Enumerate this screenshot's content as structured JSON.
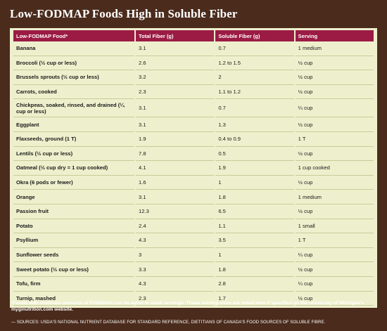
{
  "title": "Low-FODMAP Foods High in Soluble Fiber",
  "table": {
    "headers": [
      "Low-FODMAP Food*",
      "Total Fiber (g)",
      "Soluble Fiber (g)",
      "Serving"
    ],
    "rows": [
      [
        "Banana",
        "3.1",
        "0.7",
        "1 medium"
      ],
      [
        "Broccoli (½ cup or less)",
        "2.6",
        "1.2 to 1.5",
        "½ cup"
      ],
      [
        "Brussels sprouts (½ cup or less)",
        "3.2",
        "2",
        "½ cup"
      ],
      [
        "Carrots, cooked",
        "2.3",
        "1.1 to 1.2",
        "½ cup"
      ],
      [
        "Chickpeas, soaked, rinsed, and drained (¼ cup or less)",
        "3.1",
        "0.7",
        "¼ cup"
      ],
      [
        "Eggplant",
        "3.1",
        "1.3",
        "½ cup"
      ],
      [
        "Flaxseeds, ground (1 T)",
        "1.9",
        "0.4 to 0.9",
        "1 T"
      ],
      [
        "Lentils (½ cup or less)",
        "7.8",
        "0.5",
        "½ cup"
      ],
      [
        "Oatmeal (½ cup dry = 1 cup cooked)",
        "4.1",
        "1.9",
        "1 cup cooked"
      ],
      [
        "Okra (6 pods or fewer)",
        "1.6",
        "1",
        "½ cup"
      ],
      [
        "Orange",
        "3.1",
        "1.8",
        "1 medium"
      ],
      [
        "Passion fruit",
        "12.3",
        "6.5",
        "½ cup"
      ],
      [
        "Potato",
        "2.4",
        "1.1",
        "1 small"
      ],
      [
        "Psyllium",
        "4.3",
        "3.5",
        "1 T"
      ],
      [
        "Sunflower seeds",
        "3",
        "1",
        "¼ cup"
      ],
      [
        "Sweet potato (½ cup or less)",
        "3.3",
        "1.8",
        "½ cup"
      ],
      [
        "Tofu, firm",
        "4.3",
        "2.8",
        "¼ cup"
      ],
      [
        "Turnip, mashed",
        "2.3",
        "1.7",
        "½ cup"
      ]
    ]
  },
  "footnote": "*Foods with moderate amounts of FODMAPs can be eaten in small servings. These serving sizes are noted here if specified on the University of Michigan's myginutrition.com website.",
  "sources": "— SOURCES: USDA'S NATIONAL NUTRIENT DATABASE FOR STANDARD REFERENCE, DIETITIANS OF CANADA'S FOOD SOURCES OF SOLUBLE FIBRE."
}
